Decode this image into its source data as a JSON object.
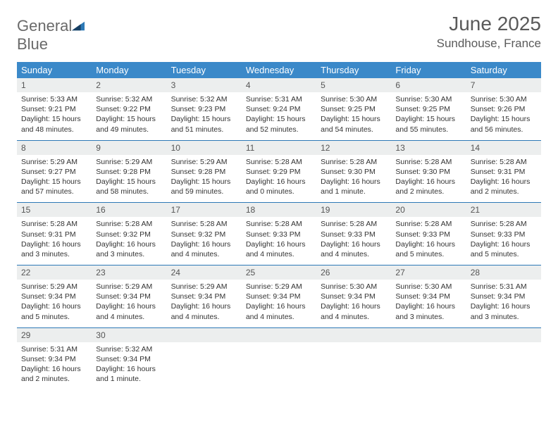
{
  "logo": {
    "word1": "General",
    "word2": "Blue"
  },
  "title": "June 2025",
  "location": "Sundhouse, France",
  "colors": {
    "header_bg": "#3b89c9",
    "header_text": "#ffffff",
    "daynum_bg": "#eceeee",
    "row_border": "#2d79b6",
    "logo_gray": "#6a6a6a",
    "logo_blue": "#2d79b6",
    "title_color": "#5a5a5a"
  },
  "weekdays": [
    "Sunday",
    "Monday",
    "Tuesday",
    "Wednesday",
    "Thursday",
    "Friday",
    "Saturday"
  ],
  "weeks": [
    [
      {
        "num": "1",
        "sunrise": "5:33 AM",
        "sunset": "9:21 PM",
        "daylight": "15 hours and 48 minutes."
      },
      {
        "num": "2",
        "sunrise": "5:32 AM",
        "sunset": "9:22 PM",
        "daylight": "15 hours and 49 minutes."
      },
      {
        "num": "3",
        "sunrise": "5:32 AM",
        "sunset": "9:23 PM",
        "daylight": "15 hours and 51 minutes."
      },
      {
        "num": "4",
        "sunrise": "5:31 AM",
        "sunset": "9:24 PM",
        "daylight": "15 hours and 52 minutes."
      },
      {
        "num": "5",
        "sunrise": "5:30 AM",
        "sunset": "9:25 PM",
        "daylight": "15 hours and 54 minutes."
      },
      {
        "num": "6",
        "sunrise": "5:30 AM",
        "sunset": "9:25 PM",
        "daylight": "15 hours and 55 minutes."
      },
      {
        "num": "7",
        "sunrise": "5:30 AM",
        "sunset": "9:26 PM",
        "daylight": "15 hours and 56 minutes."
      }
    ],
    [
      {
        "num": "8",
        "sunrise": "5:29 AM",
        "sunset": "9:27 PM",
        "daylight": "15 hours and 57 minutes."
      },
      {
        "num": "9",
        "sunrise": "5:29 AM",
        "sunset": "9:28 PM",
        "daylight": "15 hours and 58 minutes."
      },
      {
        "num": "10",
        "sunrise": "5:29 AM",
        "sunset": "9:28 PM",
        "daylight": "15 hours and 59 minutes."
      },
      {
        "num": "11",
        "sunrise": "5:28 AM",
        "sunset": "9:29 PM",
        "daylight": "16 hours and 0 minutes."
      },
      {
        "num": "12",
        "sunrise": "5:28 AM",
        "sunset": "9:30 PM",
        "daylight": "16 hours and 1 minute."
      },
      {
        "num": "13",
        "sunrise": "5:28 AM",
        "sunset": "9:30 PM",
        "daylight": "16 hours and 2 minutes."
      },
      {
        "num": "14",
        "sunrise": "5:28 AM",
        "sunset": "9:31 PM",
        "daylight": "16 hours and 2 minutes."
      }
    ],
    [
      {
        "num": "15",
        "sunrise": "5:28 AM",
        "sunset": "9:31 PM",
        "daylight": "16 hours and 3 minutes."
      },
      {
        "num": "16",
        "sunrise": "5:28 AM",
        "sunset": "9:32 PM",
        "daylight": "16 hours and 3 minutes."
      },
      {
        "num": "17",
        "sunrise": "5:28 AM",
        "sunset": "9:32 PM",
        "daylight": "16 hours and 4 minutes."
      },
      {
        "num": "18",
        "sunrise": "5:28 AM",
        "sunset": "9:33 PM",
        "daylight": "16 hours and 4 minutes."
      },
      {
        "num": "19",
        "sunrise": "5:28 AM",
        "sunset": "9:33 PM",
        "daylight": "16 hours and 4 minutes."
      },
      {
        "num": "20",
        "sunrise": "5:28 AM",
        "sunset": "9:33 PM",
        "daylight": "16 hours and 5 minutes."
      },
      {
        "num": "21",
        "sunrise": "5:28 AM",
        "sunset": "9:33 PM",
        "daylight": "16 hours and 5 minutes."
      }
    ],
    [
      {
        "num": "22",
        "sunrise": "5:29 AM",
        "sunset": "9:34 PM",
        "daylight": "16 hours and 5 minutes."
      },
      {
        "num": "23",
        "sunrise": "5:29 AM",
        "sunset": "9:34 PM",
        "daylight": "16 hours and 4 minutes."
      },
      {
        "num": "24",
        "sunrise": "5:29 AM",
        "sunset": "9:34 PM",
        "daylight": "16 hours and 4 minutes."
      },
      {
        "num": "25",
        "sunrise": "5:29 AM",
        "sunset": "9:34 PM",
        "daylight": "16 hours and 4 minutes."
      },
      {
        "num": "26",
        "sunrise": "5:30 AM",
        "sunset": "9:34 PM",
        "daylight": "16 hours and 4 minutes."
      },
      {
        "num": "27",
        "sunrise": "5:30 AM",
        "sunset": "9:34 PM",
        "daylight": "16 hours and 3 minutes."
      },
      {
        "num": "28",
        "sunrise": "5:31 AM",
        "sunset": "9:34 PM",
        "daylight": "16 hours and 3 minutes."
      }
    ],
    [
      {
        "num": "29",
        "sunrise": "5:31 AM",
        "sunset": "9:34 PM",
        "daylight": "16 hours and 2 minutes."
      },
      {
        "num": "30",
        "sunrise": "5:32 AM",
        "sunset": "9:34 PM",
        "daylight": "16 hours and 1 minute."
      },
      null,
      null,
      null,
      null,
      null
    ]
  ],
  "labels": {
    "sunrise": "Sunrise: ",
    "sunset": "Sunset: ",
    "daylight": "Daylight: "
  }
}
